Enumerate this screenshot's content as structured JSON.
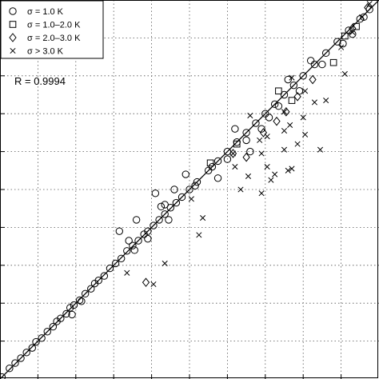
{
  "chart_data": {
    "type": "scatter",
    "title": "",
    "xlabel": "",
    "ylabel": "",
    "xlim": [
      0,
      10
    ],
    "ylim": [
      0,
      10
    ],
    "grid": true,
    "legend_position": "top-left",
    "annotation": "R = 0.9994",
    "fit_line": {
      "x": [
        0,
        10
      ],
      "y": [
        0,
        10
      ]
    },
    "series": [
      {
        "name": "σ = 1.0 K",
        "marker": "circle",
        "points": [
          [
            0.05,
            0.05
          ],
          [
            0.25,
            0.28
          ],
          [
            0.4,
            0.42
          ],
          [
            0.55,
            0.55
          ],
          [
            0.7,
            0.7
          ],
          [
            0.85,
            0.82
          ],
          [
            0.95,
            0.98
          ],
          [
            1.1,
            1.08
          ],
          [
            1.25,
            1.25
          ],
          [
            1.4,
            1.38
          ],
          [
            1.5,
            1.52
          ],
          [
            1.6,
            1.6
          ],
          [
            1.75,
            1.72
          ],
          [
            1.85,
            1.88
          ],
          [
            1.95,
            1.95
          ],
          [
            2.1,
            2.08
          ],
          [
            2.25,
            2.25
          ],
          [
            2.4,
            2.38
          ],
          [
            2.5,
            2.52
          ],
          [
            2.6,
            2.6
          ],
          [
            2.75,
            2.72
          ],
          [
            2.9,
            2.92
          ],
          [
            3.05,
            3.05
          ],
          [
            3.2,
            3.18
          ],
          [
            3.35,
            3.38
          ],
          [
            3.5,
            3.52
          ],
          [
            3.65,
            3.65
          ],
          [
            3.8,
            3.82
          ],
          [
            3.9,
            3.9
          ],
          [
            4.05,
            4.05
          ],
          [
            4.2,
            4.2
          ],
          [
            4.35,
            4.35
          ],
          [
            4.5,
            4.52
          ],
          [
            4.65,
            4.65
          ],
          [
            4.8,
            4.8
          ],
          [
            5.0,
            5.0
          ],
          [
            5.2,
            5.2
          ],
          [
            5.5,
            5.5
          ],
          [
            5.75,
            5.75
          ],
          [
            6.0,
            6.0
          ],
          [
            6.25,
            6.25
          ],
          [
            6.5,
            6.5
          ],
          [
            6.75,
            6.75
          ],
          [
            7.0,
            7.0
          ],
          [
            7.25,
            7.25
          ],
          [
            7.5,
            7.5
          ],
          [
            7.75,
            7.75
          ],
          [
            8.0,
            8.0
          ],
          [
            8.3,
            8.3
          ],
          [
            8.6,
            8.6
          ],
          [
            8.9,
            8.9
          ],
          [
            9.2,
            9.2
          ],
          [
            9.5,
            9.5
          ],
          [
            9.75,
            9.75
          ],
          [
            1.9,
            1.7
          ],
          [
            2.15,
            2.05
          ],
          [
            3.4,
            3.65
          ],
          [
            3.55,
            3.4
          ],
          [
            3.15,
            3.9
          ],
          [
            3.6,
            4.2
          ],
          [
            3.9,
            3.7
          ],
          [
            4.35,
            4.6
          ],
          [
            4.45,
            4.2
          ],
          [
            4.1,
            4.9
          ],
          [
            4.25,
            4.55
          ],
          [
            4.6,
            5.0
          ],
          [
            4.9,
            5.4
          ],
          [
            5.15,
            5.1
          ],
          [
            5.6,
            5.6
          ],
          [
            5.75,
            5.3
          ],
          [
            6.2,
            6.6
          ],
          [
            6.0,
            5.8
          ],
          [
            6.9,
            6.6
          ],
          [
            6.5,
            6.3
          ],
          [
            6.6,
            6.0
          ],
          [
            7.1,
            6.9
          ],
          [
            7.35,
            7.2
          ],
          [
            7.6,
            7.9
          ],
          [
            7.9,
            7.6
          ],
          [
            8.2,
            8.4
          ],
          [
            8.5,
            8.3
          ],
          [
            9.05,
            8.85
          ],
          [
            9.3,
            9.1
          ],
          [
            9.6,
            9.55
          ]
        ]
      },
      {
        "name": "σ = 1.0–2.0 K",
        "marker": "square",
        "points": [
          [
            5.55,
            5.7
          ],
          [
            6.25,
            6.2
          ],
          [
            7.7,
            7.35
          ],
          [
            7.35,
            7.6
          ],
          [
            8.8,
            8.35
          ],
          [
            9.1,
            9.05
          ],
          [
            9.4,
            9.3
          ]
        ]
      },
      {
        "name": "σ = 2.0–3.0 K",
        "marker": "diamond",
        "points": [
          [
            3.85,
            2.55
          ],
          [
            6.5,
            5.85
          ],
          [
            6.15,
            5.95
          ],
          [
            6.95,
            6.5
          ],
          [
            7.3,
            6.8
          ],
          [
            7.55,
            7.05
          ],
          [
            7.85,
            7.45
          ],
          [
            8.25,
            7.9
          ],
          [
            9.3,
            9.25
          ],
          [
            9.7,
            9.8
          ]
        ]
      },
      {
        "name": "σ > 3.0 K",
        "marker": "cross",
        "points": [
          [
            3.35,
            2.8
          ],
          [
            4.05,
            2.5
          ],
          [
            4.35,
            3.05
          ],
          [
            5.05,
            4.75
          ],
          [
            5.35,
            4.25
          ],
          [
            5.25,
            3.8
          ],
          [
            6.2,
            5.6
          ],
          [
            6.55,
            5.35
          ],
          [
            6.35,
            5.0
          ],
          [
            6.9,
            5.95
          ],
          [
            7.05,
            5.6
          ],
          [
            7.15,
            5.25
          ],
          [
            7.25,
            5.4
          ],
          [
            6.9,
            4.9
          ],
          [
            7.6,
            5.5
          ],
          [
            7.85,
            6.2
          ],
          [
            8.05,
            6.45
          ],
          [
            7.5,
            6.55
          ],
          [
            7.65,
            6.7
          ],
          [
            8.0,
            6.9
          ],
          [
            8.05,
            7.6
          ],
          [
            8.3,
            7.3
          ],
          [
            8.45,
            6.05
          ],
          [
            8.6,
            7.35
          ],
          [
            7.5,
            6.05
          ],
          [
            9.0,
            8.75
          ],
          [
            9.3,
            9.15
          ],
          [
            9.55,
            9.55
          ],
          [
            9.75,
            9.9
          ],
          [
            7.05,
            6.4
          ],
          [
            7.7,
            5.55
          ],
          [
            6.15,
            5.95
          ],
          [
            6.6,
            6.95
          ],
          [
            6.85,
            6.3
          ],
          [
            7.5,
            7.05
          ],
          [
            7.7,
            7.95
          ],
          [
            9.1,
            8.05
          ]
        ]
      }
    ]
  }
}
